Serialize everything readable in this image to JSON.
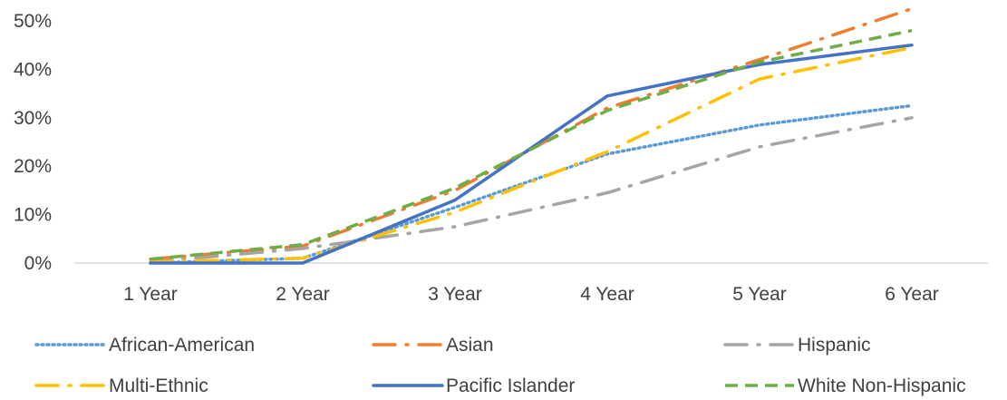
{
  "chart_data": {
    "type": "line",
    "categories": [
      "1 Year",
      "2 Year",
      "3 Year",
      "4 Year",
      "5 Year",
      "6 Year"
    ],
    "y_ticks": [
      "0%",
      "10%",
      "20%",
      "30%",
      "40%",
      "50%"
    ],
    "ylim": [
      0,
      50
    ],
    "y_unit": "%",
    "grid": false,
    "legend_position": "bottom",
    "series": [
      {
        "name": "African-American",
        "color": "#5B9BD5",
        "dash": "dotted",
        "values": [
          0,
          1,
          11.5,
          22.5,
          28.5,
          32.5
        ]
      },
      {
        "name": "Asian",
        "color": "#ED7D31",
        "dash": "long-dash-dot",
        "values": [
          0.8,
          3.5,
          15,
          32,
          42,
          52.5
        ]
      },
      {
        "name": "Hispanic",
        "color": "#A5A5A5",
        "dash": "long-dash-dot",
        "values": [
          0.2,
          3,
          7.5,
          14.5,
          24,
          30
        ]
      },
      {
        "name": "Multi-Ethnic",
        "color": "#FFC000",
        "dash": "long-dash-dot",
        "values": [
          0.2,
          1,
          10.5,
          23,
          38,
          44.5
        ]
      },
      {
        "name": "Pacific Islander",
        "color": "#4472C4",
        "dash": "solid",
        "values": [
          0,
          0,
          13,
          34.5,
          41,
          45
        ]
      },
      {
        "name": "White Non-Hispanic",
        "color": "#70AD47",
        "dash": "dashed",
        "values": [
          0.8,
          3.8,
          15.5,
          31.5,
          41.5,
          48
        ]
      }
    ]
  }
}
